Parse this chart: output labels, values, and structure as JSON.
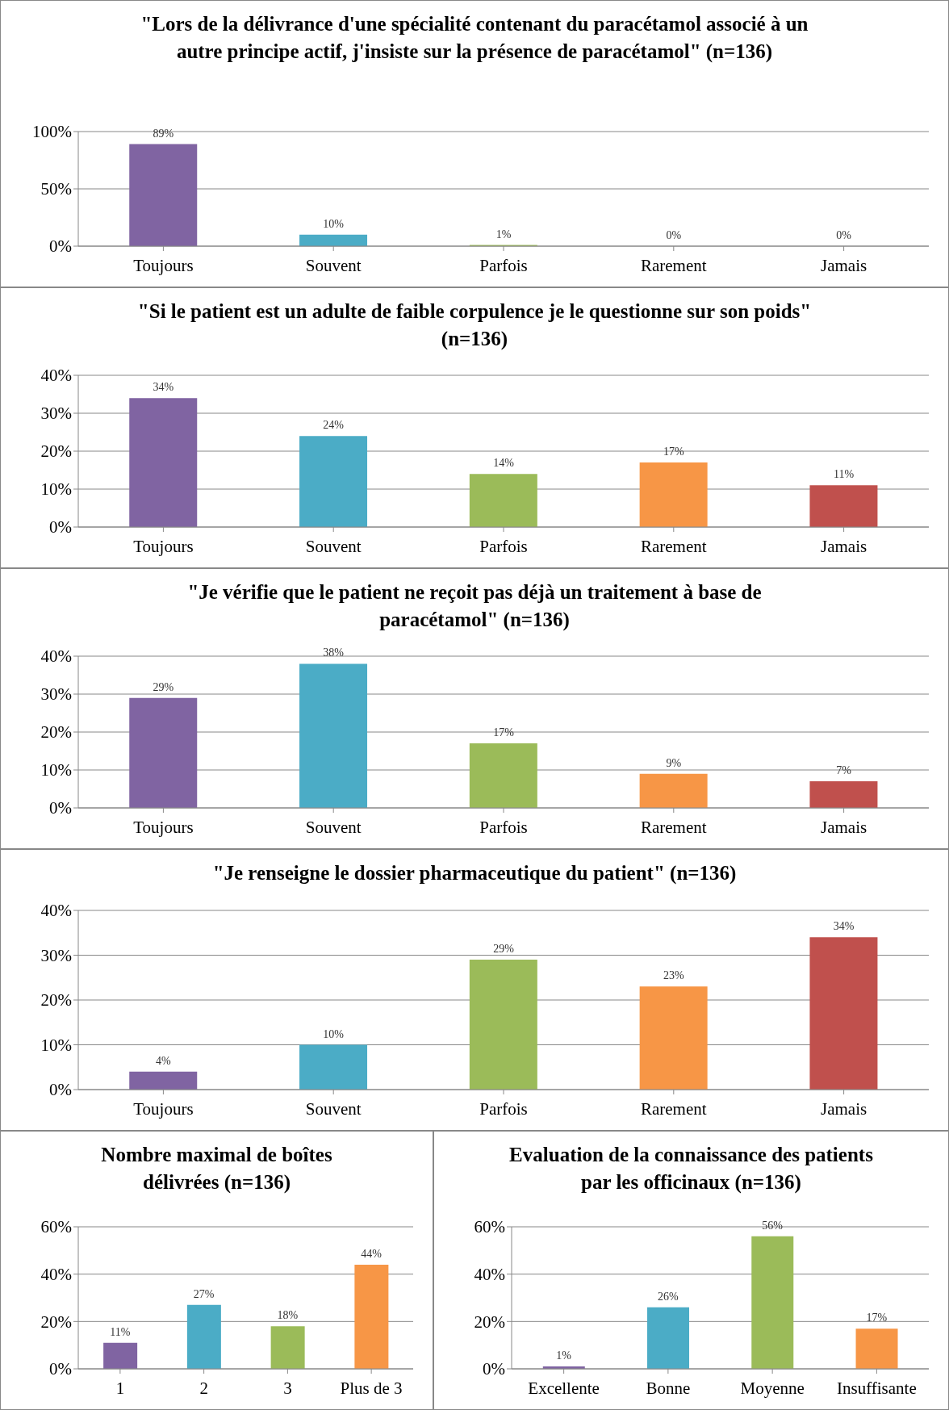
{
  "chart_data": [
    {
      "type": "bar",
      "title": "\"Lors de la délivrance d'une spécialité contenant du paracétamol associé à un autre principe actif, j'insiste  sur la présence de paracétamol\" (n=136)",
      "categories": [
        "Toujours",
        "Souvent",
        "Parfois",
        "Rarement",
        "Jamais"
      ],
      "values": [
        89,
        10,
        1,
        0,
        0
      ],
      "colors": [
        "#8064a2",
        "#4bacc6",
        "#9bbb59",
        "#f79646",
        "#c0504d"
      ],
      "value_labels": [
        "89%",
        "10%",
        "1%",
        "0%",
        "0%"
      ],
      "ylim": [
        0,
        100
      ],
      "yticks": [
        {
          "value": 0,
          "label": "0%"
        },
        {
          "value": 50,
          "label": "50%"
        },
        {
          "value": 100,
          "label": "100%"
        }
      ],
      "grid": "y"
    },
    {
      "type": "bar",
      "title": "\"Si le patient est un adulte de faible corpulence je le questionne sur son poids\" (n=136)",
      "categories": [
        "Toujours",
        "Souvent",
        "Parfois",
        "Rarement",
        "Jamais"
      ],
      "values": [
        34,
        24,
        14,
        17,
        11
      ],
      "colors": [
        "#8064a2",
        "#4bacc6",
        "#9bbb59",
        "#f79646",
        "#c0504d"
      ],
      "value_labels": [
        "34%",
        "24%",
        "14%",
        "17%",
        "11%"
      ],
      "ylim": [
        0,
        40
      ],
      "yticks": [
        {
          "value": 0,
          "label": "0%"
        },
        {
          "value": 10,
          "label": "10%"
        },
        {
          "value": 20,
          "label": "20%"
        },
        {
          "value": 30,
          "label": "30%"
        },
        {
          "value": 40,
          "label": "40%"
        }
      ],
      "grid": "y"
    },
    {
      "type": "bar",
      "title": "\"Je vérifie que le patient ne reçoit pas déjà un traitement à base de paracétamol\" (n=136)",
      "categories": [
        "Toujours",
        "Souvent",
        "Parfois",
        "Rarement",
        "Jamais"
      ],
      "values": [
        29,
        38,
        17,
        9,
        7
      ],
      "colors": [
        "#8064a2",
        "#4bacc6",
        "#9bbb59",
        "#f79646",
        "#c0504d"
      ],
      "value_labels": [
        "29%",
        "38%",
        "17%",
        "9%",
        "7%"
      ],
      "ylim": [
        0,
        40
      ],
      "yticks": [
        {
          "value": 0,
          "label": "0%"
        },
        {
          "value": 10,
          "label": "10%"
        },
        {
          "value": 20,
          "label": "20%"
        },
        {
          "value": 30,
          "label": "30%"
        },
        {
          "value": 40,
          "label": "40%"
        }
      ],
      "grid": "y"
    },
    {
      "type": "bar",
      "title": "\"Je renseigne le dossier pharmaceutique du patient\" (n=136)",
      "categories": [
        "Toujours",
        "Souvent",
        "Parfois",
        "Rarement",
        "Jamais"
      ],
      "values": [
        4,
        10,
        29,
        23,
        34
      ],
      "colors": [
        "#8064a2",
        "#4bacc6",
        "#9bbb59",
        "#f79646",
        "#c0504d"
      ],
      "value_labels": [
        "4%",
        "10%",
        "29%",
        "23%",
        "34%"
      ],
      "ylim": [
        0,
        40
      ],
      "yticks": [
        {
          "value": 0,
          "label": "0%"
        },
        {
          "value": 10,
          "label": "10%"
        },
        {
          "value": 20,
          "label": "20%"
        },
        {
          "value": 30,
          "label": "30%"
        },
        {
          "value": 40,
          "label": "40%"
        }
      ],
      "grid": "y"
    },
    {
      "type": "bar",
      "title": "Nombre maximal de boîtes délivrées (n=136)",
      "categories": [
        "1",
        "2",
        "3",
        "Plus de 3"
      ],
      "values": [
        11,
        27,
        18,
        44
      ],
      "colors": [
        "#8064a2",
        "#4bacc6",
        "#9bbb59",
        "#f79646"
      ],
      "value_labels": [
        "11%",
        "27%",
        "18%",
        "44%"
      ],
      "ylim": [
        0,
        60
      ],
      "yticks": [
        {
          "value": 0,
          "label": "0%"
        },
        {
          "value": 20,
          "label": "20%"
        },
        {
          "value": 40,
          "label": "40%"
        },
        {
          "value": 60,
          "label": "60%"
        }
      ],
      "grid": "y"
    },
    {
      "type": "bar",
      "title": "Evaluation de la connaissance des patients par les officinaux (n=136)",
      "categories": [
        "Excellente",
        "Bonne",
        "Moyenne",
        "Insuffisante"
      ],
      "values": [
        1,
        26,
        56,
        17
      ],
      "colors": [
        "#8064a2",
        "#4bacc6",
        "#9bbb59",
        "#f79646"
      ],
      "value_labels": [
        "1%",
        "26%",
        "56%",
        "17%"
      ],
      "ylim": [
        0,
        60
      ],
      "yticks": [
        {
          "value": 0,
          "label": "0%"
        },
        {
          "value": 20,
          "label": "20%"
        },
        {
          "value": 40,
          "label": "40%"
        },
        {
          "value": 60,
          "label": "60%"
        }
      ],
      "grid": "y"
    }
  ]
}
